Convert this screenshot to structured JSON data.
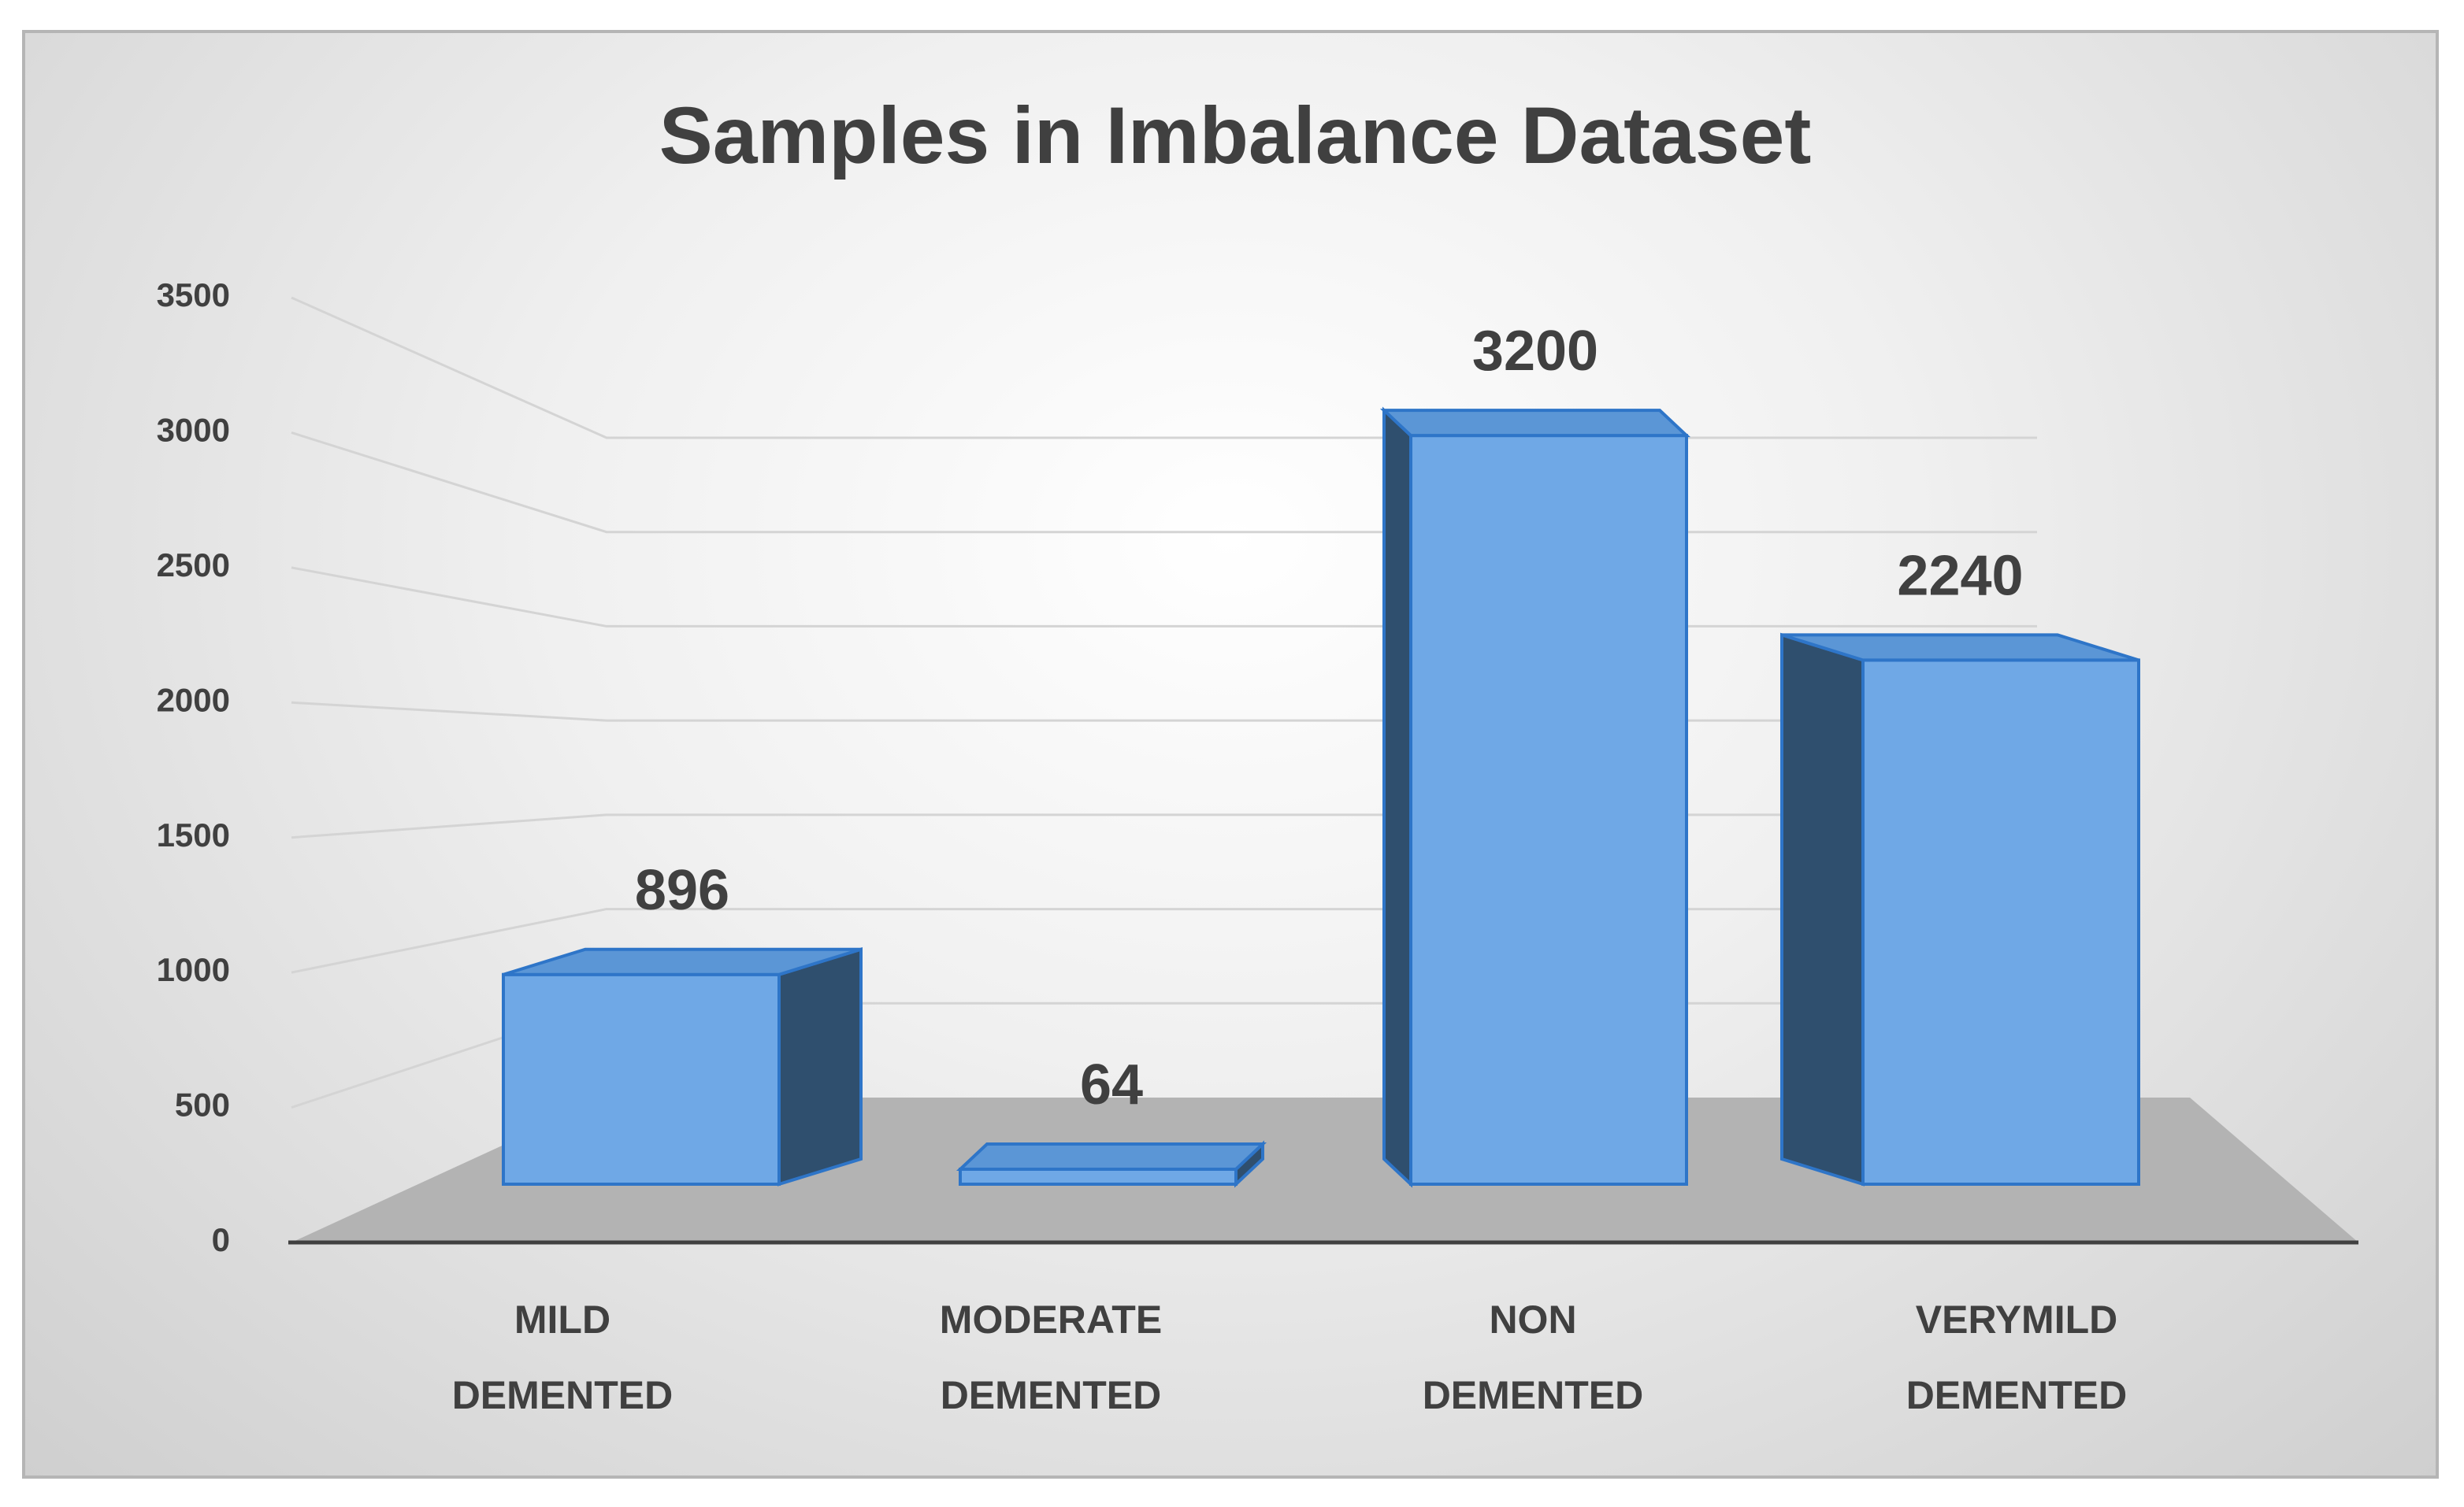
{
  "chart_data": {
    "type": "bar3d",
    "title": "Samples in Imbalance Dataset",
    "categories": [
      "MILD DEMENTED",
      "MODERATE DEMENTED",
      "NON DEMENTED",
      "VERYMILD DEMENTED"
    ],
    "values": [
      896,
      64,
      3200,
      2240
    ],
    "color": "#6fa8e6",
    "ylim": [
      0,
      3500
    ],
    "yticks": [
      0,
      500,
      1000,
      1500,
      2000,
      2500,
      3000,
      3500
    ],
    "grid": true
  }
}
